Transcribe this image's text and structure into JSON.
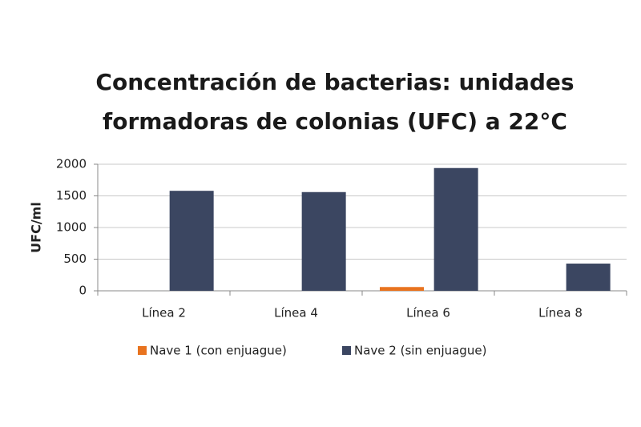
{
  "chart_data": {
    "type": "bar",
    "title": [
      "Concentración de bacterias: unidades",
      "formadoras de colonias (UFC) a 22°C"
    ],
    "y_label": "UFC/ml",
    "categories": [
      "Línea 2",
      "Línea 4",
      "Línea 6",
      "Línea 8"
    ],
    "series": [
      {
        "name": "Nave 1 (con enjuague)",
        "color": "#e8731f",
        "values": [
          0,
          0,
          60,
          0
        ]
      },
      {
        "name": "Nave 2 (sin enjuague)",
        "color": "#3b4661",
        "values": [
          1580,
          1560,
          1940,
          430
        ]
      }
    ],
    "ylim": [
      0,
      2000
    ],
    "yticks": [
      0,
      500,
      1000,
      1500,
      2000
    ],
    "grid": true,
    "legend": "bottom"
  }
}
